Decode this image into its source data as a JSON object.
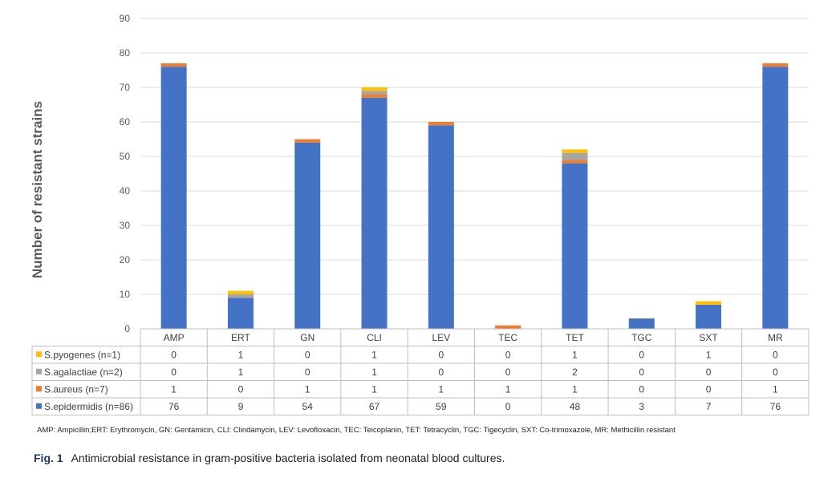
{
  "chart_data": {
    "type": "bar",
    "stacked": true,
    "ylabel": "Number of resistant strains",
    "ylim": [
      0,
      90
    ],
    "yticks": [
      0,
      10,
      20,
      30,
      40,
      50,
      60,
      70,
      80,
      90
    ],
    "grid": true,
    "categories": [
      "AMP",
      "ERT",
      "GN",
      "CLI",
      "LEV",
      "TEC",
      "TET",
      "TGC",
      "SXT",
      "MR"
    ],
    "series": [
      {
        "name": "S.epidermidis (n=86)",
        "color": "#4472C4",
        "values": [
          76,
          9,
          54,
          67,
          59,
          0,
          48,
          3,
          7,
          76
        ]
      },
      {
        "name": "S.aureus (n=7)",
        "color": "#ED7D31",
        "values": [
          1,
          0,
          1,
          1,
          1,
          1,
          1,
          0,
          0,
          1
        ]
      },
      {
        "name": "S.agalactiae (n=2)",
        "color": "#A5A5A5",
        "values": [
          0,
          1,
          0,
          1,
          0,
          0,
          2,
          0,
          0,
          0
        ]
      },
      {
        "name": "S.pyogenes (n=1)",
        "color": "#FFC000",
        "values": [
          0,
          1,
          0,
          1,
          0,
          0,
          1,
          0,
          1,
          0
        ]
      }
    ],
    "table_row_order": [
      "S.pyogenes (n=1)",
      "S.agalactiae (n=2)",
      "S.aureus (n=7)",
      "S.epidermidis (n=86)"
    ]
  },
  "footnote": "AMP: Ampicillin;ERT: Erythromycin, GN:  Gentamicin, CLI:  Clindamycin, LEV: Levofloxacin, TEC:  Teicoplanin, TET: Tetracyclin, TGC: Tigecyclin, SXT: Co-trimoxazole, MR:  Methicillin resistant",
  "caption": {
    "label": "Fig. 1",
    "text": "Antimicrobial resistance in gram-positive bacteria isolated from neonatal blood cultures."
  }
}
